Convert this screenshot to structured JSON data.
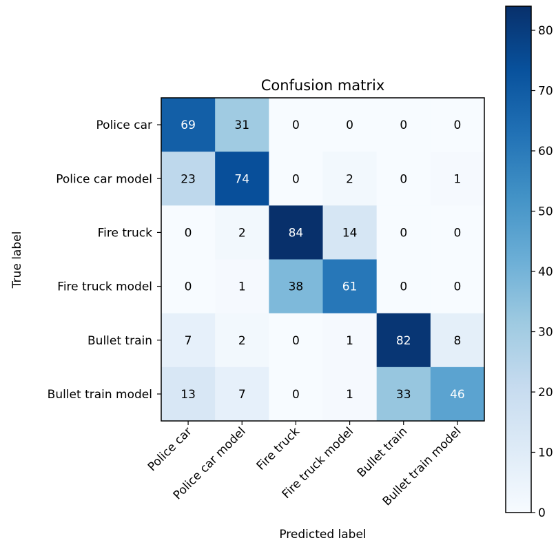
{
  "chart_data": {
    "type": "heatmap",
    "title": "Confusion matrix",
    "xlabel": "Predicted label",
    "ylabel": "True label",
    "row_labels": [
      "Police car",
      "Police car model",
      "Fire truck",
      "Fire truck model",
      "Bullet train",
      "Bullet train model"
    ],
    "col_labels": [
      "Police car",
      "Police car model",
      "Fire truck",
      "Fire truck model",
      "Bullet train",
      "Bullet train model"
    ],
    "values": [
      [
        69,
        31,
        0,
        0,
        0,
        0
      ],
      [
        23,
        74,
        0,
        2,
        0,
        1
      ],
      [
        0,
        2,
        84,
        14,
        0,
        0
      ],
      [
        0,
        1,
        38,
        61,
        0,
        0
      ],
      [
        7,
        2,
        0,
        1,
        82,
        8
      ],
      [
        13,
        7,
        0,
        1,
        33,
        46
      ]
    ],
    "colormap": "Blues",
    "colorbar": {
      "range": [
        0,
        84
      ],
      "ticks": [
        0,
        10,
        20,
        30,
        40,
        50,
        60,
        70,
        80
      ]
    },
    "grid": false
  }
}
